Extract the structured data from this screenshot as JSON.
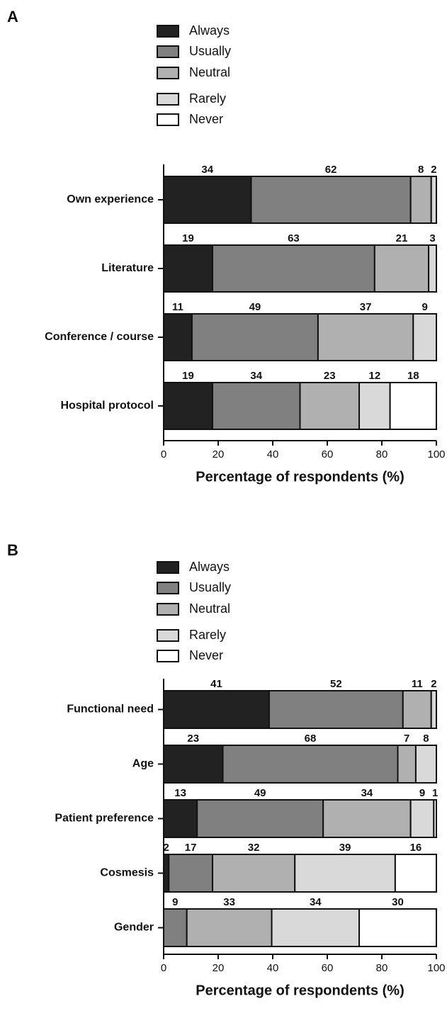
{
  "chart_data": [
    {
      "type": "bar",
      "stacked": "percent",
      "panel": "A",
      "categories": [
        "Own experience",
        "Literature",
        "Conference / course",
        "Hospital protocol"
      ],
      "series": [
        {
          "name": "Always",
          "color": "#222222",
          "values": [
            34,
            19,
            11,
            19
          ]
        },
        {
          "name": "Usually",
          "color": "#808080",
          "values": [
            62,
            63,
            49,
            34
          ]
        },
        {
          "name": "Neutral",
          "color": "#b0b0b0",
          "values": [
            8,
            21,
            37,
            23
          ]
        },
        {
          "name": "Rarely",
          "color": "#d9d9d9",
          "values": [
            2,
            3,
            9,
            12
          ]
        },
        {
          "name": "Never",
          "color": "#ffffff",
          "values": [
            null,
            null,
            null,
            18
          ]
        }
      ],
      "xlim": [
        0,
        100
      ],
      "xticks": [
        0,
        20,
        40,
        60,
        80,
        100
      ],
      "xlabel": "Percentage of respondents (%)"
    },
    {
      "type": "bar",
      "stacked": "percent",
      "panel": "B",
      "categories": [
        "Functional need",
        "Age",
        "Patient preference",
        "Cosmesis",
        "Gender"
      ],
      "series": [
        {
          "name": "Always",
          "color": "#222222",
          "values": [
            41,
            23,
            13,
            2,
            null
          ]
        },
        {
          "name": "Usually",
          "color": "#808080",
          "values": [
            52,
            68,
            49,
            17,
            9
          ]
        },
        {
          "name": "Neutral",
          "color": "#b0b0b0",
          "values": [
            11,
            7,
            34,
            32,
            33
          ]
        },
        {
          "name": "Rarely",
          "color": "#d9d9d9",
          "values": [
            2,
            8,
            9,
            39,
            34
          ]
        },
        {
          "name": "Never",
          "color": "#ffffff",
          "values": [
            null,
            null,
            1,
            16,
            30
          ]
        }
      ],
      "xlim": [
        0,
        100
      ],
      "xticks": [
        0,
        20,
        40,
        60,
        80,
        100
      ],
      "xlabel": "Percentage of respondents (%)"
    }
  ]
}
